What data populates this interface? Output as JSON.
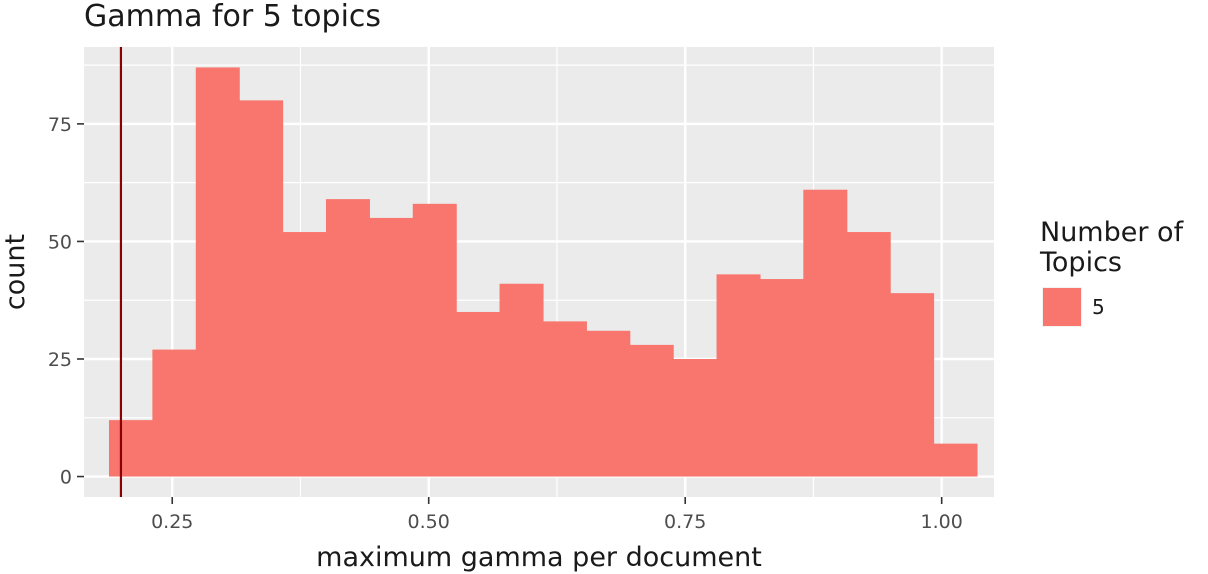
{
  "chart_data": {
    "type": "bar",
    "title": "Gamma for 5 topics",
    "xlabel": "maximum gamma per document",
    "ylabel": "count",
    "xlim": [
      0.164,
      1.051
    ],
    "ylim": [
      -4.35,
      91.35
    ],
    "x_ticks": [
      0.25,
      0.5,
      0.75,
      1.0
    ],
    "x_tick_labels": [
      "0.25",
      "0.50",
      "0.75",
      "1.00"
    ],
    "y_ticks": [
      0,
      25,
      50,
      75
    ],
    "y_tick_labels": [
      "0",
      "25",
      "50",
      "75"
    ],
    "bin_width": 0.0423,
    "bins": [
      {
        "x": 0.2095,
        "count": 12
      },
      {
        "x": 0.2518,
        "count": 27
      },
      {
        "x": 0.2941,
        "count": 87
      },
      {
        "x": 0.3364,
        "count": 80
      },
      {
        "x": 0.3787,
        "count": 52
      },
      {
        "x": 0.421,
        "count": 59
      },
      {
        "x": 0.4633,
        "count": 55
      },
      {
        "x": 0.5056,
        "count": 58
      },
      {
        "x": 0.5479,
        "count": 35
      },
      {
        "x": 0.5902,
        "count": 41
      },
      {
        "x": 0.6325,
        "count": 33
      },
      {
        "x": 0.6748,
        "count": 31
      },
      {
        "x": 0.7171,
        "count": 28
      },
      {
        "x": 0.7594,
        "count": 25
      },
      {
        "x": 0.8017,
        "count": 43
      },
      {
        "x": 0.844,
        "count": 42
      },
      {
        "x": 0.8863,
        "count": 61
      },
      {
        "x": 0.9286,
        "count": 52
      },
      {
        "x": 0.9709,
        "count": 39
      },
      {
        "x": 1.0132,
        "count": 7
      }
    ],
    "vline_x": 0.2,
    "fill_color": "#F8766D",
    "vline_color": "#8B0000",
    "panel_color": "#EBEBEB",
    "grid": true,
    "legend": {
      "title_lines": [
        "Number of",
        "Topics"
      ],
      "items": [
        {
          "label": "5",
          "color": "#F8766D"
        }
      ],
      "position": "right"
    }
  }
}
